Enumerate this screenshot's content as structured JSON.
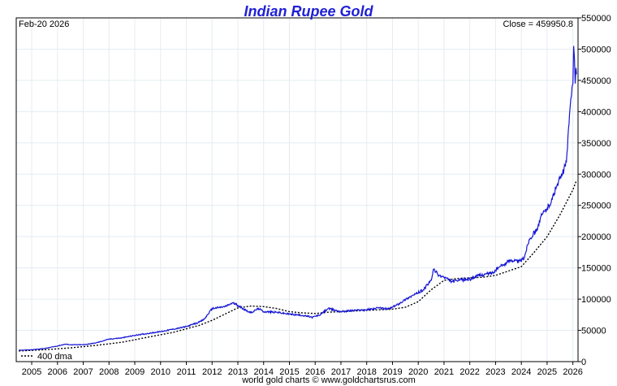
{
  "chart_data": {
    "type": "line",
    "title": "Indian Rupee Gold",
    "date_label": "Feb-20  2026",
    "close_label": "Close = 459950.8",
    "credit": "world gold charts © www.goldchartsrus.com",
    "ylim": [
      0,
      550000
    ],
    "y_ticks": [
      0,
      50000,
      100000,
      150000,
      200000,
      250000,
      300000,
      350000,
      400000,
      450000,
      500000,
      550000
    ],
    "x_ticks": [
      "2005",
      "2006",
      "2007",
      "2008",
      "2009",
      "2010",
      "2011",
      "2012",
      "2013",
      "2014",
      "2015",
      "2016",
      "2017",
      "2018",
      "2019",
      "2020",
      "2021",
      "2022",
      "2023",
      "2024",
      "2025",
      "2026"
    ],
    "grid": true,
    "legend": {
      "placement": "bottom-left",
      "entries": [
        "400 dma"
      ]
    },
    "colors": {
      "gold": "#1515d4",
      "dma": "#000000",
      "title": "#1f1fd6",
      "grid": "#e4ecf2"
    },
    "series": [
      {
        "key": "gold",
        "style": "solid",
        "x": [
          2004.5,
          2005.0,
          2005.5,
          2006.0,
          2006.3,
          2006.5,
          2007.0,
          2007.5,
          2008.0,
          2008.5,
          2009.0,
          2009.5,
          2010.0,
          2010.5,
          2011.0,
          2011.5,
          2011.7,
          2012.0,
          2012.5,
          2012.8,
          2013.0,
          2013.2,
          2013.5,
          2013.8,
          2014.0,
          2014.5,
          2015.0,
          2015.5,
          2015.9,
          2016.2,
          2016.5,
          2017.0,
          2017.5,
          2018.0,
          2018.5,
          2018.8,
          2019.0,
          2019.3,
          2019.6,
          2019.9,
          2020.2,
          2020.5,
          2020.6,
          2020.8,
          2021.0,
          2021.3,
          2021.6,
          2022.0,
          2022.3,
          2022.6,
          2022.9,
          2023.1,
          2023.3,
          2023.6,
          2023.9,
          2024.1,
          2024.3,
          2024.6,
          2024.8,
          2025.0,
          2025.2,
          2025.4,
          2025.6,
          2025.75,
          2025.85,
          2025.92,
          2025.97,
          2026.0,
          2026.03,
          2026.06,
          2026.09,
          2026.12,
          2026.14
        ],
        "y": [
          18000,
          19000,
          21000,
          25000,
          28000,
          27000,
          27000,
          30000,
          36000,
          38000,
          42000,
          45000,
          48000,
          52000,
          56000,
          63000,
          68000,
          85000,
          88000,
          94000,
          90000,
          85000,
          78000,
          85000,
          80000,
          79000,
          76000,
          74000,
          71000,
          75000,
          85000,
          80000,
          82000,
          83000,
          86000,
          84000,
          87000,
          94000,
          102000,
          108000,
          115000,
          130000,
          148000,
          138000,
          135000,
          128000,
          130000,
          132000,
          137000,
          140000,
          142000,
          150000,
          155000,
          163000,
          160000,
          165000,
          195000,
          212000,
          235000,
          245000,
          260000,
          285000,
          300000,
          320000,
          380000,
          420000,
          440000,
          445000,
          505000,
          485000,
          445000,
          470000,
          459950.8
        ]
      },
      {
        "key": "dma",
        "name": "400 dma",
        "style": "dashed",
        "x": [
          2004.5,
          2005.5,
          2006.5,
          2007.5,
          2008.5,
          2009.5,
          2010.5,
          2011.5,
          2012.0,
          2012.5,
          2013.0,
          2013.5,
          2014.0,
          2014.5,
          2015.0,
          2015.5,
          2016.0,
          2016.5,
          2017.0,
          2017.5,
          2018.0,
          2018.5,
          2019.0,
          2019.5,
          2020.0,
          2020.5,
          2021.0,
          2021.5,
          2022.0,
          2022.5,
          2023.0,
          2023.5,
          2024.0,
          2024.5,
          2025.0,
          2025.5,
          2026.0,
          2026.14
        ],
        "y": [
          17000,
          19000,
          22000,
          26000,
          31000,
          39000,
          47000,
          58000,
          66000,
          76000,
          86000,
          89000,
          88000,
          85000,
          80000,
          78000,
          77000,
          79000,
          80000,
          81000,
          82000,
          83000,
          84000,
          87000,
          96000,
          115000,
          130000,
          133000,
          134000,
          135000,
          138000,
          145000,
          152000,
          175000,
          200000,
          235000,
          275000,
          290000
        ]
      }
    ]
  }
}
